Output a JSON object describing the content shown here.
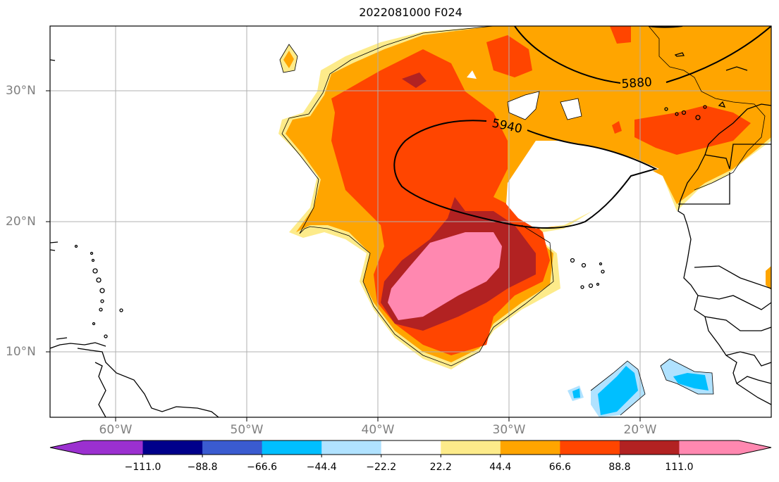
{
  "title": "2022081000 F024",
  "lat_labels": [
    "30°N",
    "20°N",
    "10°N"
  ],
  "lon_labels": [
    "60°W",
    "50°W",
    "40°W",
    "30°W",
    "20°W"
  ],
  "contours": [
    {
      "label": "5880"
    },
    {
      "label": "5940"
    }
  ],
  "colorbar": {
    "tick_labels": [
      "−111.0",
      "−88.8",
      "−66.6",
      "−44.4",
      "−22.2",
      "22.2",
      "44.4",
      "66.6",
      "88.8",
      "111.0"
    ],
    "colors": [
      "#9b30d0",
      "#00008b",
      "#3a5bd0",
      "#00bfff",
      "#b0e2ff",
      "#ffffff",
      "#fdeb8a",
      "#ffa500",
      "#ff4500",
      "#b22222",
      "#ff88b0",
      "#ff88b0"
    ]
  },
  "colors": {
    "light_yellow": "#fdeb8a",
    "orange": "#ffa500",
    "red_orange": "#ff4500",
    "dark_red": "#b22222",
    "pink": "#ff88b0",
    "cyan": "#00bfff",
    "light_blue": "#b0e2ff",
    "gridline": "#b0b0b0",
    "coast": "#000000"
  }
}
